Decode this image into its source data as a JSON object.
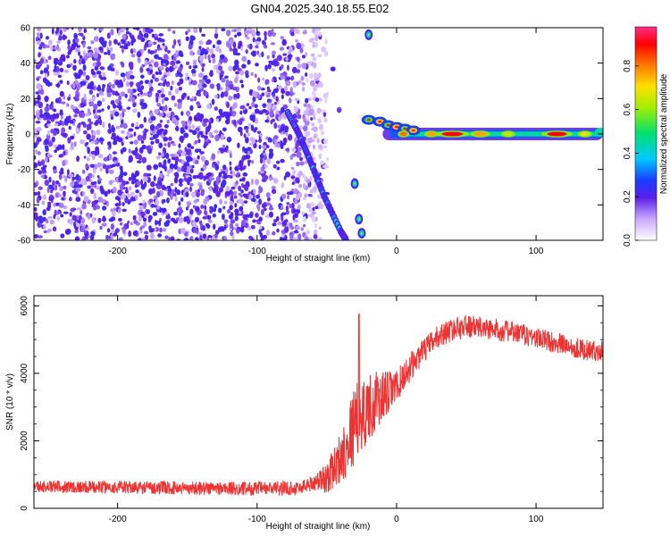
{
  "title": "GN04.2025.340.18.55.E02",
  "chart_data": [
    {
      "type": "heatmap",
      "xlabel": "Height of straight line (km)",
      "ylabel": "Frequency (Hz)",
      "xlim": [
        -260,
        148
      ],
      "ylim": [
        -60,
        60
      ],
      "xticks": [
        -200,
        -100,
        0,
        100
      ],
      "xtick_labels": [
        "-200",
        "-100",
        "0",
        "100"
      ],
      "yticks": [
        -60,
        -40,
        -20,
        0,
        20,
        40,
        60
      ],
      "ytick_labels": [
        "-60",
        "-40",
        "-20",
        "0",
        "20",
        "40",
        "60"
      ],
      "colorbar": {
        "label": "Normalized spectral amplitude",
        "range": [
          0,
          0.98
        ],
        "ticks": [
          0,
          0.2,
          0.4,
          0.6,
          0.8
        ],
        "tick_labels": [
          "0.0",
          "0.2",
          "0.4",
          "0.6",
          "0.8"
        ]
      },
      "features": {
        "noise_region_x": [
          -260,
          -55
        ],
        "diagonal_streak": [
          [
            -78,
            12
          ],
          [
            -70,
            0
          ],
          [
            -62,
            -15
          ],
          [
            -52,
            -35
          ],
          [
            -40,
            -55
          ],
          [
            -36,
            -60
          ]
        ],
        "horizontal_band": {
          "x": [
            -20,
            148
          ],
          "y": 0,
          "peak_near": [
            40,
            115
          ]
        },
        "small_blobs": [
          [
            -20,
            56
          ],
          [
            -30,
            -28
          ],
          [
            -27,
            -48
          ],
          [
            -25,
            -56
          ]
        ]
      }
    },
    {
      "type": "line",
      "xlabel": "Height of straight line (km)",
      "ylabel": "SNR (10 * v/v)",
      "xlim": [
        -260,
        148
      ],
      "ylim": [
        0,
        6300
      ],
      "xticks": [
        -200,
        -100,
        0,
        100
      ],
      "xtick_labels": [
        "-200",
        "-100",
        "0",
        "100"
      ],
      "yticks": [
        0,
        2000,
        4000,
        6000
      ],
      "ytick_labels": [
        "0",
        "2000",
        "4000",
        "6000"
      ],
      "color": "#ee3333",
      "series_profile": {
        "x": [
          -260,
          -200,
          -150,
          -100,
          -70,
          -50,
          -40,
          -30,
          -20,
          -10,
          0,
          10,
          20,
          30,
          40,
          50,
          60,
          70,
          80,
          90,
          100,
          110,
          120,
          130,
          140,
          148
        ],
        "y": [
          650,
          620,
          600,
          580,
          600,
          900,
          1500,
          2500,
          3000,
          3300,
          3600,
          4200,
          4700,
          5100,
          5300,
          5400,
          5350,
          5300,
          5250,
          5150,
          5050,
          4950,
          4850,
          4750,
          4650,
          4700
        ]
      },
      "noise_amplitude": {
        "x": [
          -260,
          -60,
          -45,
          -30,
          -15,
          0,
          20,
          148
        ],
        "amp": [
          180,
          220,
          600,
          1200,
          900,
          500,
          350,
          300
        ]
      },
      "spike": {
        "x": -27,
        "y": 5750
      }
    }
  ]
}
